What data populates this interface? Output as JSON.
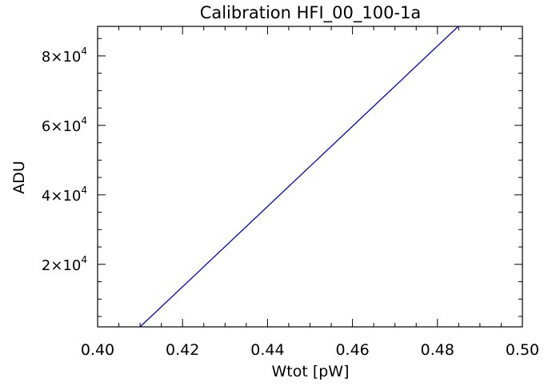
{
  "chart_data": {
    "type": "line",
    "title": "Calibration HFI_00_100-1a",
    "xlabel": "Wtot [pW]",
    "ylabel": "ADU",
    "xlim": [
      0.4,
      0.5
    ],
    "ylim": [
      2000,
      88500
    ],
    "x_ticks": [
      0.4,
      0.42,
      0.44,
      0.46,
      0.48,
      0.5
    ],
    "x_tick_labels": [
      "0.40",
      "0.42",
      "0.44",
      "0.46",
      "0.48",
      "0.50"
    ],
    "y_ticks": [
      20000,
      40000,
      60000,
      80000
    ],
    "y_tick_labels": [
      {
        "mantissa": "2",
        "base": "×10",
        "exp": "4"
      },
      {
        "mantissa": "4",
        "base": "×10",
        "exp": "4"
      },
      {
        "mantissa": "6",
        "base": "×10",
        "exp": "4"
      },
      {
        "mantissa": "8",
        "base": "×10",
        "exp": "4"
      }
    ],
    "grid": false,
    "series": [
      {
        "color": "#0000cc",
        "x": [
          0.41,
          0.4849
        ],
        "y": [
          2000,
          88500
        ]
      }
    ]
  }
}
